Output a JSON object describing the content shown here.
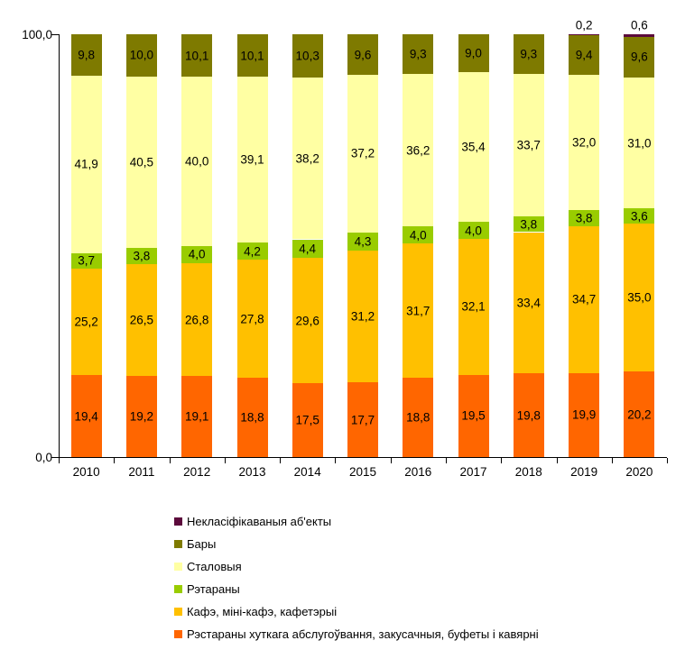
{
  "chart_data": {
    "type": "bar",
    "stacked": true,
    "percent_stacked": true,
    "title": "",
    "xlabel": "",
    "ylabel": "",
    "ylim": [
      0,
      100
    ],
    "grid": false,
    "decimal_separator": ",",
    "legend_position": "bottom-left",
    "categories": [
      "2010",
      "2011",
      "2012",
      "2013",
      "2014",
      "2015",
      "2016",
      "2017",
      "2018",
      "2019",
      "2020"
    ],
    "series": [
      {
        "name": "Рэстараны хуткага абслугоўвання, закусачныя, буфеты і кавярні",
        "color": "#FF6600",
        "values": [
          19.4,
          19.2,
          19.1,
          18.8,
          17.5,
          17.7,
          18.8,
          19.5,
          19.8,
          19.9,
          20.2
        ]
      },
      {
        "name": "Кафэ, міні-кафэ, кафетэрыі",
        "color": "#FFC000",
        "values": [
          25.2,
          26.5,
          26.8,
          27.8,
          29.6,
          31.2,
          31.7,
          32.1,
          33.4,
          34.7,
          35.0
        ]
      },
      {
        "name": "Рэтараны",
        "color": "#99CC00",
        "values": [
          3.7,
          3.8,
          4.0,
          4.2,
          4.4,
          4.3,
          4.0,
          4.0,
          3.8,
          3.8,
          3.6
        ]
      },
      {
        "name": "Сталовыя",
        "color": "#FFFFA3",
        "values": [
          41.9,
          40.5,
          40.0,
          39.1,
          38.2,
          37.2,
          36.2,
          35.4,
          33.7,
          32.0,
          31.0
        ]
      },
      {
        "name": "Бары",
        "color": "#7E7A00",
        "values": [
          9.8,
          10.0,
          10.1,
          10.1,
          10.3,
          9.6,
          9.3,
          9.0,
          9.3,
          9.4,
          9.6
        ]
      },
      {
        "name": "Некласіфікаваныя аб'екты",
        "color": "#5C0A3C",
        "values": [
          0,
          0,
          0,
          0,
          0,
          0,
          0,
          0,
          0,
          0.2,
          0.6
        ]
      }
    ],
    "yticks": [
      {
        "value": 100,
        "label": "100,0"
      },
      {
        "value": 0,
        "label": "0,0"
      }
    ]
  }
}
